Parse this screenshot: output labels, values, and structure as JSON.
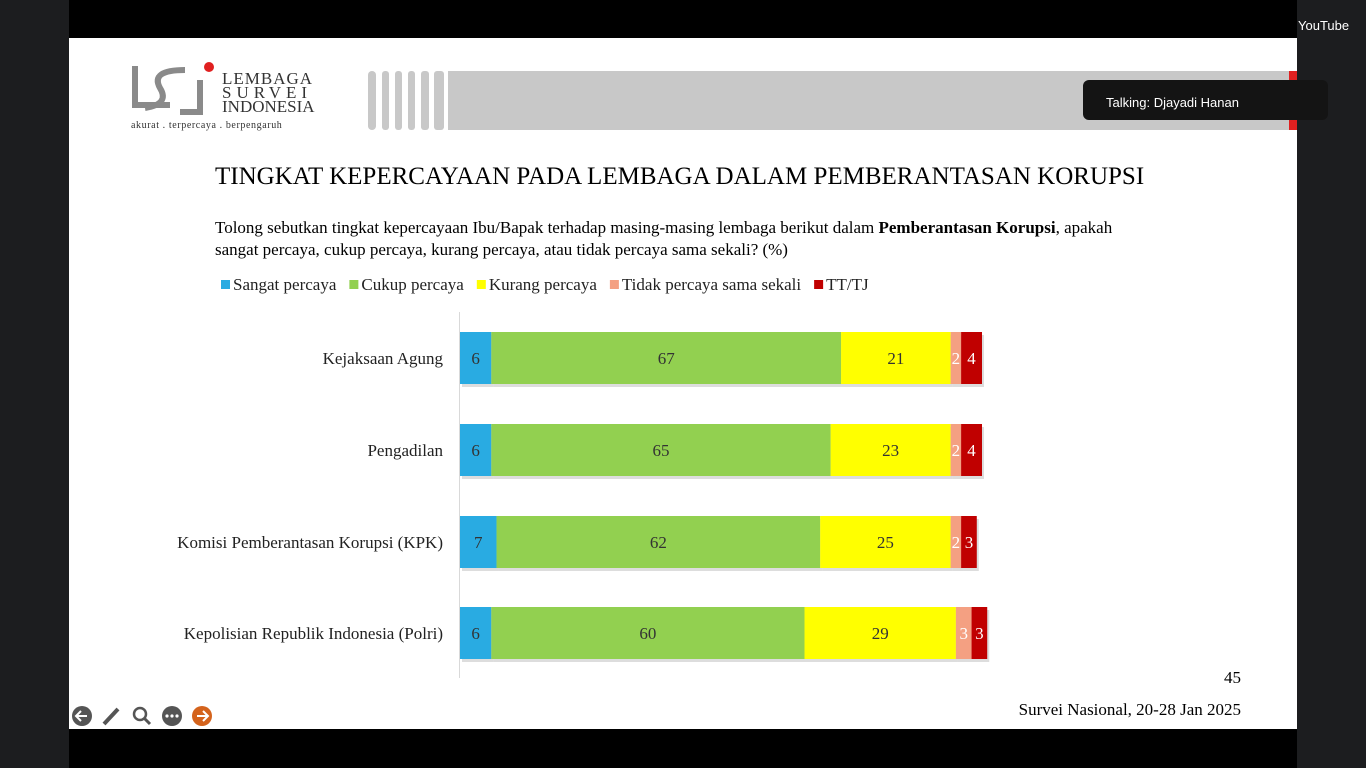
{
  "window": {
    "app": "YouTube",
    "speaker": "Talking: Djayadi Hanan"
  },
  "logo": {
    "line1": "LEMBAGA",
    "line2": "SURVEI",
    "line3": "INDONESIA",
    "tagline": "akurat . terpercaya . berpengaruh"
  },
  "chart_data": {
    "type": "stacked-bar-horizontal",
    "title": "TINGKAT KEPERCAYAAN PADA LEMBAGA DALAM PEMBERANTASAN KORUPSI",
    "subtitle": [
      "Tolong sebutkan tingkat kepercayaan Ibu/Bapak terhadap masing-masing lembaga berikut dalam ",
      "Pemberantasan Korupsi",
      ", apakah",
      "sangat percaya, cukup percaya, kurang percaya, atau tidak percaya sama sekali?  (%)"
    ],
    "categories": [
      "Kejaksaan Agung",
      "Pengadilan",
      "Komisi Pemberantasan Korupsi (KPK)",
      "Kepolisian Republik Indonesia (Polri)"
    ],
    "xlim": [
      0,
      100
    ],
    "series": [
      {
        "name": "Sangat percaya",
        "color": "#29abe2",
        "values": [
          6,
          6,
          7,
          6
        ]
      },
      {
        "name": "Cukup percaya",
        "color": "#92d050",
        "values": [
          67,
          65,
          62,
          60
        ]
      },
      {
        "name": "Kurang percaya",
        "color": "#ffff00",
        "values": [
          21,
          23,
          25,
          29
        ]
      },
      {
        "name": "Tidak percaya sama sekali",
        "color": "#f4a082",
        "values": [
          2,
          2,
          2,
          3
        ]
      },
      {
        "name": "TT/TJ",
        "color": "#c00000",
        "values": [
          4,
          4,
          3,
          3
        ]
      }
    ]
  },
  "footer": {
    "page": "45",
    "source": "Survei Nasional, 20-28 Jan 2025"
  }
}
